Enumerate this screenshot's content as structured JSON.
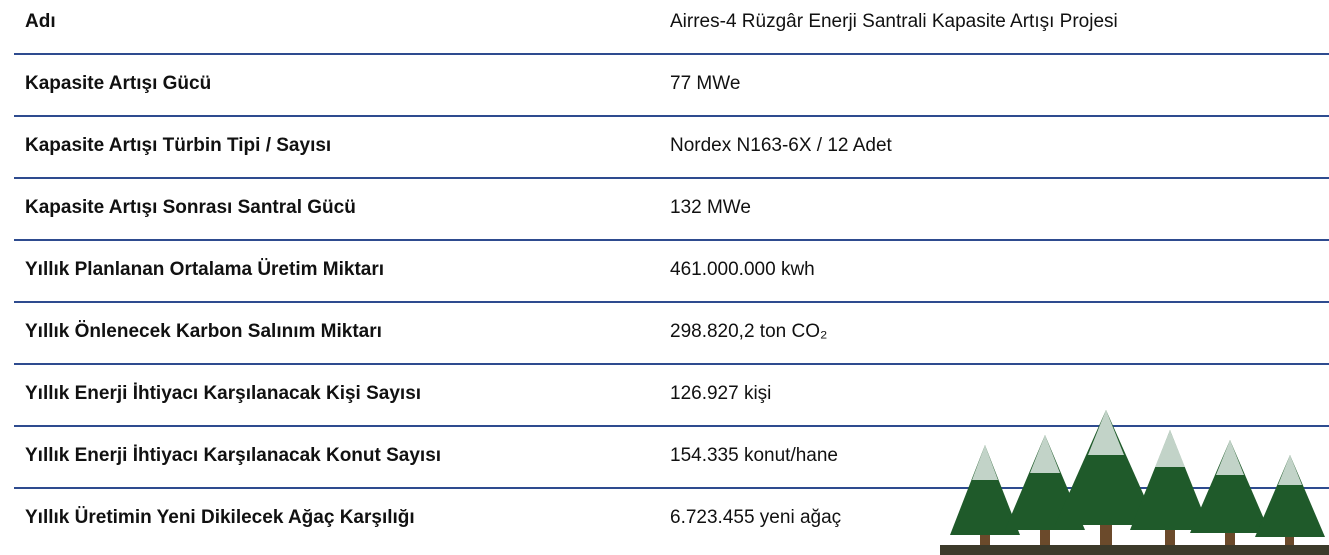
{
  "table": {
    "rows": [
      [
        "Adı",
        "Airres-4 Rüzgâr Enerji Santrali Kapasite Artışı Projesi"
      ],
      [
        "Kapasite Artışı Gücü",
        "77 MWe"
      ],
      [
        "Kapasite Artışı Türbin Tipi / Sayısı",
        "Nordex N163-6X / 12 Adet"
      ],
      [
        "Kapasite Artışı Sonrası Santral Gücü",
        "132 MWe"
      ],
      [
        "Yıllık Planlanan Ortalama Üretim Miktarı",
        "461.000.000 kwh"
      ],
      [
        "Yıllık Önlenecek Karbon Salınım Miktarı",
        "298.820,2 ton CO₂"
      ],
      [
        "Yıllık Enerji İhtiyacı Karşılanacak Kişi Sayısı",
        "126.927 kişi"
      ],
      [
        "Yıllık Enerji İhtiyacı Karşılanacak Konut Sayısı",
        "154.335 konut/hane"
      ],
      [
        "Yıllık Üretimin Yeni Dikilecek Ağaç Karşılığı",
        "6.723.455 yeni ağaç"
      ]
    ]
  }
}
